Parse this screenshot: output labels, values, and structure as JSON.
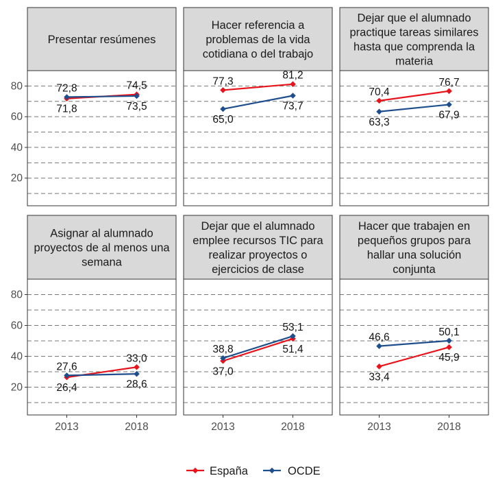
{
  "chart_data": {
    "type": "line",
    "layout": "faceted 2x3",
    "x": [
      "2013",
      "2018"
    ],
    "y_ticks": [
      "20",
      "40",
      "60",
      "80"
    ],
    "ylim": [
      2,
      90
    ],
    "grid": "dashed horizontal",
    "legend_position": "bottom",
    "colors": {
      "espana": "#E8131B",
      "ocde": "#1F4E8C"
    },
    "legend": [
      {
        "label": "España",
        "color": "#E8131B"
      },
      {
        "label": "OCDE",
        "color": "#1F4E8C"
      }
    ],
    "panels": [
      {
        "title_lines": [
          "Presentar resúmenes"
        ],
        "series": [
          {
            "name": "España",
            "values": [
              71.8,
              74.5
            ],
            "labels": [
              "71,8",
              "74,5"
            ]
          },
          {
            "name": "OCDE",
            "values": [
              72.8,
              73.5
            ],
            "labels": [
              "72,8",
              "73,5"
            ]
          }
        ]
      },
      {
        "title_lines": [
          "Hacer referencia a",
          "problemas de la vida",
          "cotidiana o del trabajo"
        ],
        "series": [
          {
            "name": "España",
            "values": [
              77.3,
              81.2
            ],
            "labels": [
              "77,3",
              "81,2"
            ]
          },
          {
            "name": "OCDE",
            "values": [
              65.0,
              73.7
            ],
            "labels": [
              "65,0",
              "73,7"
            ]
          }
        ]
      },
      {
        "title_lines": [
          "Dejar que el alumnado",
          "practique tareas similares",
          "hasta que comprenda la",
          "materia"
        ],
        "series": [
          {
            "name": "España",
            "values": [
              70.4,
              76.7
            ],
            "labels": [
              "70,4",
              "76,7"
            ]
          },
          {
            "name": "OCDE",
            "values": [
              63.3,
              67.9
            ],
            "labels": [
              "63,3",
              "67,9"
            ]
          }
        ]
      },
      {
        "title_lines": [
          "Asignar al alumnado",
          "proyectos de al menos una",
          "semana"
        ],
        "series": [
          {
            "name": "España",
            "values": [
              26.4,
              33.0
            ],
            "labels": [
              "26,4",
              "33,0"
            ]
          },
          {
            "name": "OCDE",
            "values": [
              27.6,
              28.6
            ],
            "labels": [
              "27,6",
              "28,6"
            ]
          }
        ]
      },
      {
        "title_lines": [
          "Dejar que el alumnado",
          "emplee recursos TIC para",
          "realizar proyectos o",
          "ejercicios de clase"
        ],
        "series": [
          {
            "name": "España",
            "values": [
              37.0,
              51.4
            ],
            "labels": [
              "37,0",
              "51,4"
            ]
          },
          {
            "name": "OCDE",
            "values": [
              38.8,
              53.1
            ],
            "labels": [
              "38,8",
              "53,1"
            ]
          }
        ]
      },
      {
        "title_lines": [
          "Hacer que trabajen en",
          "pequeños grupos para",
          "hallar una solución",
          "conjunta"
        ],
        "series": [
          {
            "name": "España",
            "values": [
              33.4,
              45.9
            ],
            "labels": [
              "33,4",
              "45,9"
            ]
          },
          {
            "name": "OCDE",
            "values": [
              46.6,
              50.1
            ],
            "labels": [
              "46,6",
              "50,1"
            ]
          }
        ]
      }
    ]
  }
}
